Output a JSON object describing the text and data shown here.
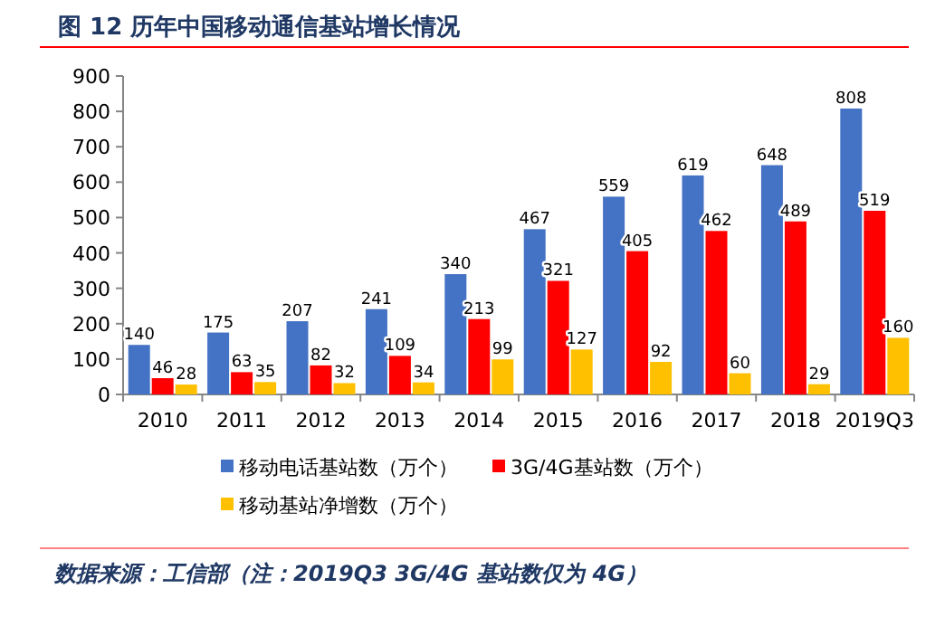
{
  "chart_data": {
    "type": "bar",
    "title": "图 12 历年中国移动通信基站增长情况",
    "categories": [
      "2010",
      "2011",
      "2012",
      "2013",
      "2014",
      "2015",
      "2016",
      "2017",
      "2018",
      "2019Q3"
    ],
    "series": [
      {
        "name": "移动电话基站数（万个）",
        "color": "#4472c4",
        "values": [
          140,
          175,
          207,
          241,
          340,
          467,
          559,
          619,
          648,
          808
        ]
      },
      {
        "name": "3G/4G基站数（万个）",
        "color": "#ff0000",
        "values": [
          46,
          63,
          82,
          109,
          213,
          321,
          405,
          462,
          489,
          519
        ]
      },
      {
        "name": "移动基站净增数（万个）",
        "color": "#ffc000",
        "values": [
          28,
          35,
          32,
          34,
          99,
          127,
          92,
          60,
          29,
          160
        ]
      }
    ],
    "ylim": [
      0,
      900
    ],
    "yticks": [
      0,
      100,
      200,
      300,
      400,
      500,
      600,
      700,
      800,
      900
    ],
    "data_labels": true,
    "legend": "bottom",
    "annotations": [
      "数据来源：工信部（注：2019Q3 3G/4G 基站数仅为 4G）"
    ]
  }
}
